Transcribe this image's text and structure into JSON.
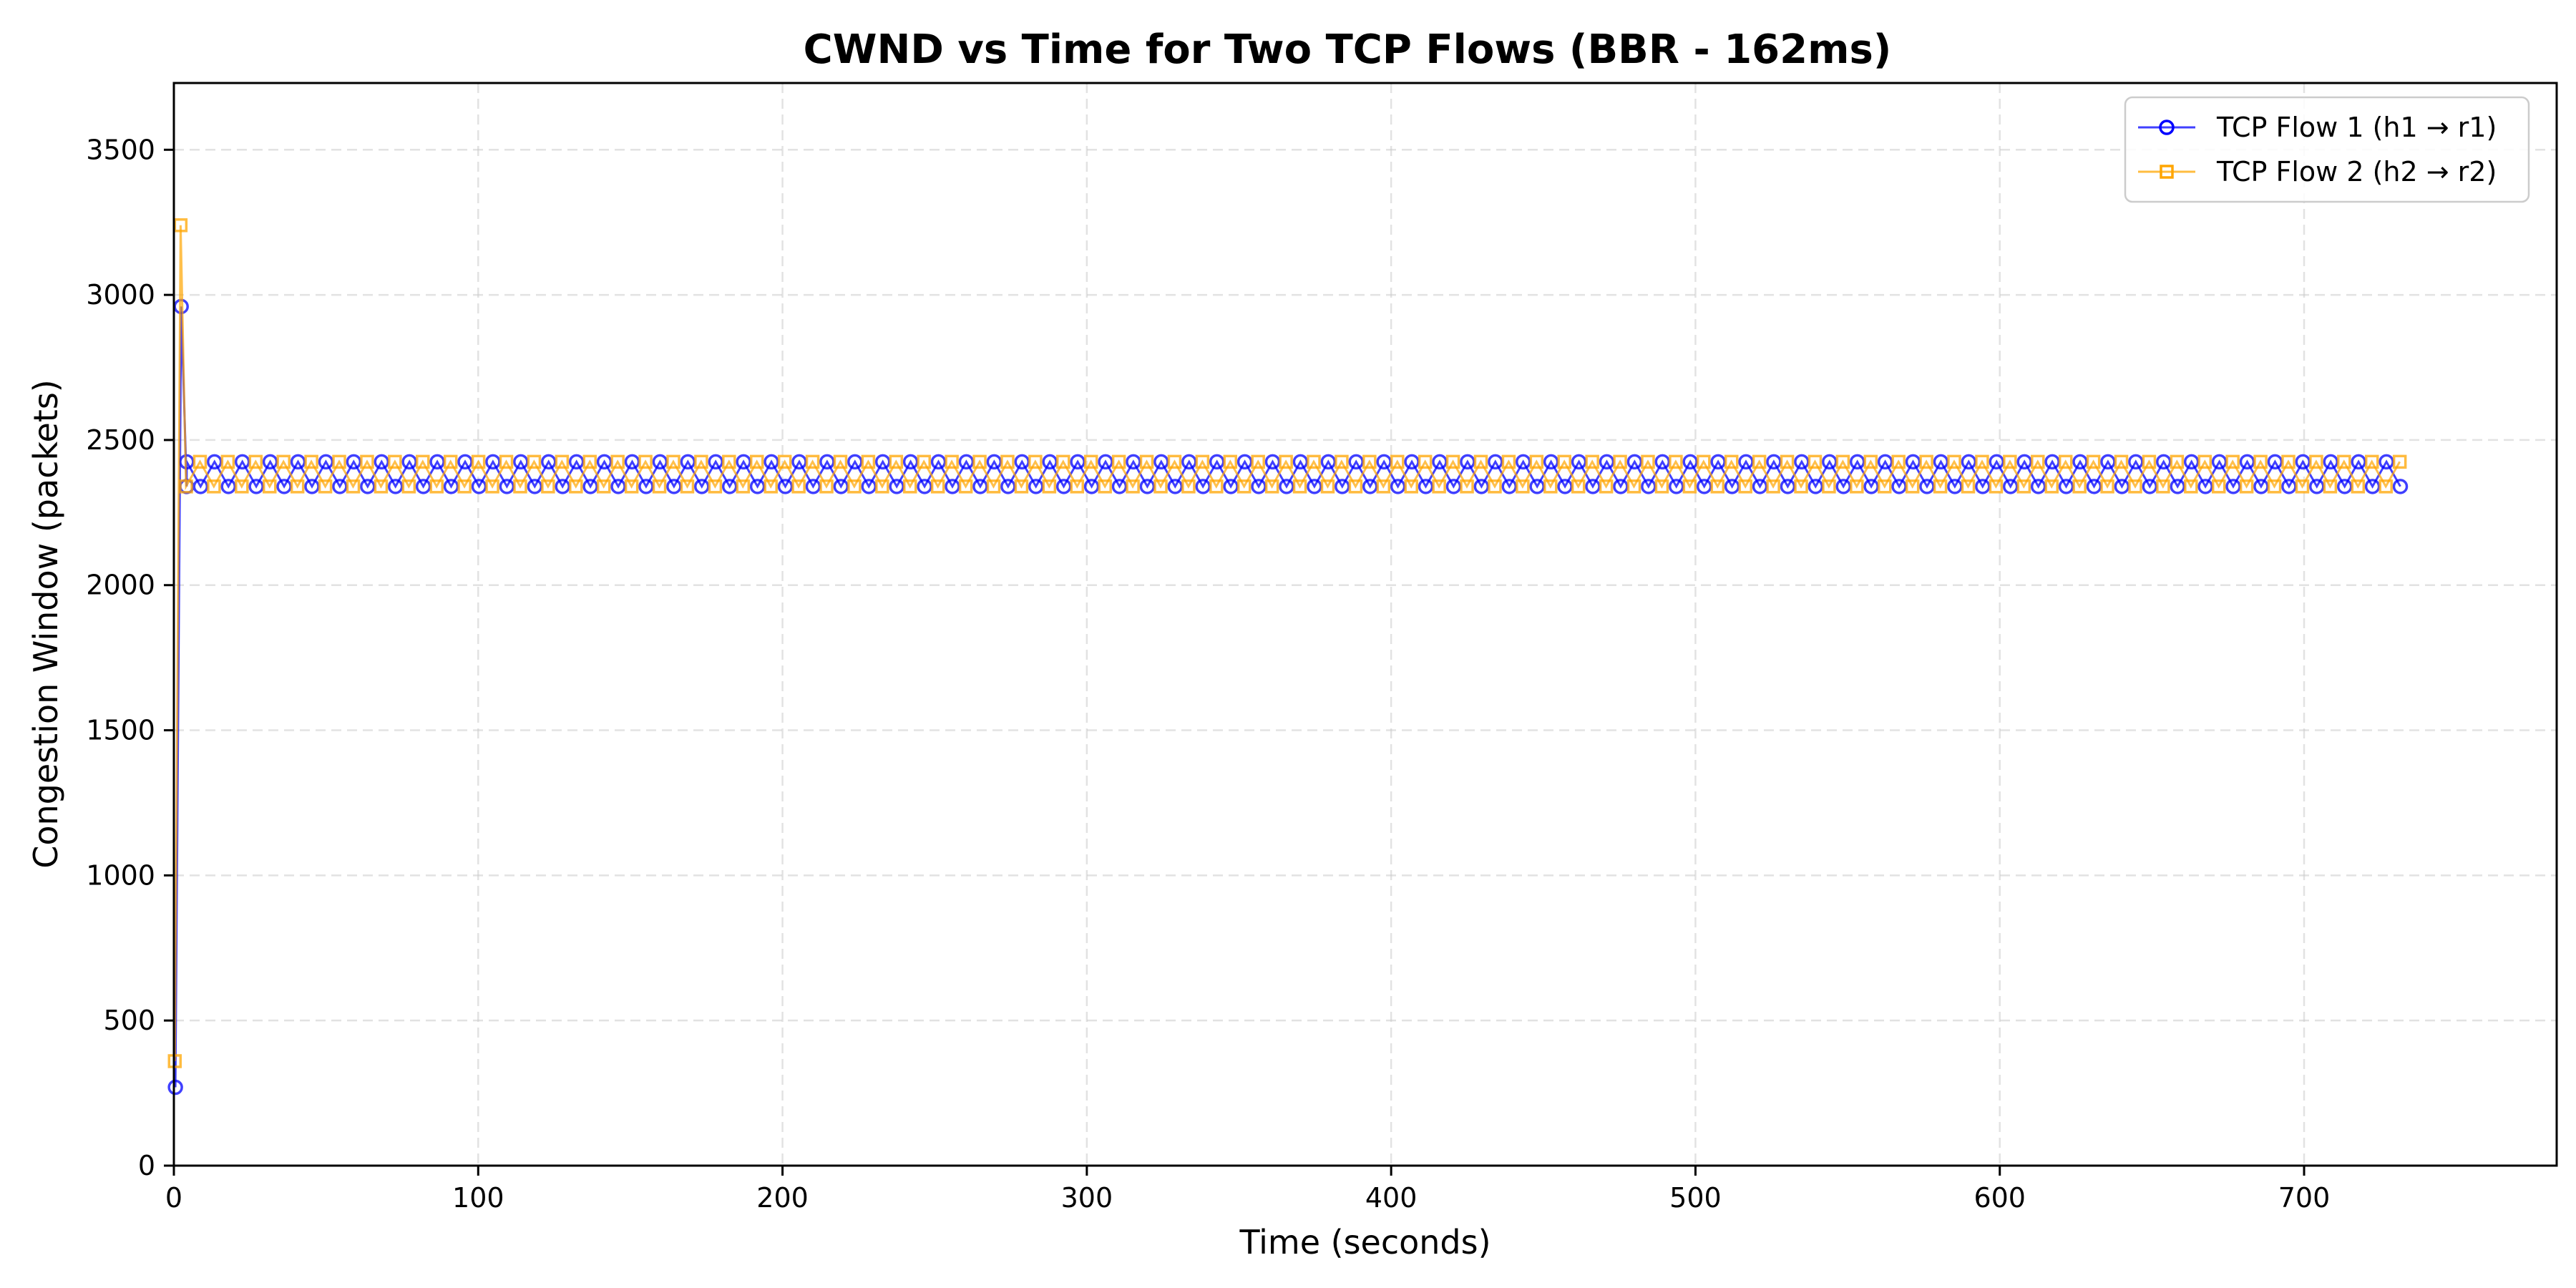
{
  "chart_data": {
    "type": "line",
    "title": "CWND vs Time for Two TCP Flows (BBR - 162ms)",
    "xlabel": "Time (seconds)",
    "ylabel": "Congestion Window (packets)",
    "xlim": [
      0,
      783
    ],
    "ylim": [
      0,
      3730
    ],
    "xticks": [
      0,
      100,
      200,
      300,
      400,
      500,
      600,
      700
    ],
    "yticks": [
      0,
      500,
      1000,
      1500,
      2000,
      2500,
      3000,
      3500
    ],
    "grid": true,
    "legend_position": "top-right",
    "series": [
      {
        "name": "TCP Flow 1 (h1 → r1)",
        "color": "#0000ff",
        "marker": "circle",
        "startup": [
          [
            0.5,
            270
          ],
          [
            2.4,
            2960
          ],
          [
            4.2,
            2340
          ]
        ],
        "cycle": {
          "start": 4.2,
          "end": 734,
          "period": 9.15,
          "low": 2340,
          "high": 2425,
          "phase": 0.0
        }
      },
      {
        "name": "TCP Flow 2 (h2 → r2)",
        "color": "#ffa500",
        "marker": "square",
        "startup": [
          [
            0.3,
            360
          ],
          [
            2.2,
            3240
          ],
          [
            4.0,
            2340
          ]
        ],
        "cycle": {
          "start": 4.0,
          "end": 734,
          "period": 9.15,
          "low": 2340,
          "high": 2425,
          "phase": 4.575
        }
      }
    ]
  }
}
